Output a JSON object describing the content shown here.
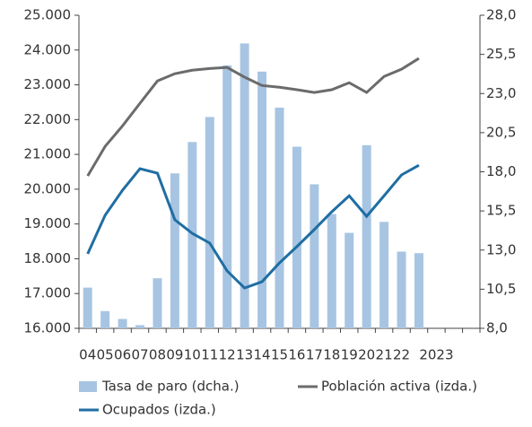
{
  "chart_data": {
    "type": "bar_line",
    "categories": [
      "04",
      "05",
      "06",
      "07",
      "08",
      "09",
      "10",
      "11",
      "12",
      "13",
      "14",
      "15",
      "16",
      "17",
      "18",
      "19",
      "20",
      "21",
      "22",
      null,
      "2023",
      null,
      null
    ],
    "series": [
      {
        "name": "Tasa de paro (dcha.)",
        "type": "bar",
        "axis": "y2",
        "color": "#a7c5e2",
        "values": [
          10.6,
          9.1,
          8.6,
          8.2,
          11.2,
          17.9,
          19.9,
          21.5,
          24.8,
          26.2,
          24.4,
          22.1,
          19.6,
          17.2,
          15.3,
          14.1,
          19.7,
          14.8,
          12.9,
          12.8,
          null,
          null,
          null
        ]
      },
      {
        "name": "Población activa (izda.)",
        "type": "line",
        "color": "#6b6b6b",
        "values": [
          20380,
          21230,
          21820,
          22470,
          23110,
          23320,
          23420,
          23470,
          23500,
          23220,
          22980,
          22930,
          22860,
          22780,
          22860,
          23060,
          22780,
          23240,
          23450,
          23760,
          null,
          null,
          null
        ]
      },
      {
        "name": "Ocupados (izda.)",
        "type": "line",
        "color": "#1f6ea3",
        "values": [
          18140,
          19250,
          19970,
          20590,
          20460,
          19120,
          18730,
          18450,
          17650,
          17160,
          17340,
          17880,
          18350,
          18840,
          19350,
          19810,
          19220,
          19810,
          20410,
          20690,
          null,
          null,
          null
        ]
      }
    ],
    "ylim": [
      16000,
      25000
    ],
    "yticks": [
      {
        "value": 16000,
        "label": "16.000"
      },
      {
        "value": 17000,
        "label": "17.000"
      },
      {
        "value": 18000,
        "label": "18.000"
      },
      {
        "value": 19000,
        "label": "19.000"
      },
      {
        "value": 20000,
        "label": "20.000"
      },
      {
        "value": 21000,
        "label": "21.000"
      },
      {
        "value": 22000,
        "label": "22.000"
      },
      {
        "value": 23000,
        "label": "23.000"
      },
      {
        "value": 24000,
        "label": "24.000"
      },
      {
        "value": 25000,
        "label": "25.000"
      }
    ],
    "y2lim": [
      8,
      28
    ],
    "y2ticks": [
      {
        "value": 8,
        "label": "8,0"
      },
      {
        "value": 10.5,
        "label": "10,5"
      },
      {
        "value": 13,
        "label": "13,0"
      },
      {
        "value": 15.5,
        "label": "15,5"
      },
      {
        "value": 18,
        "label": "18,0"
      },
      {
        "value": 20.5,
        "label": "20,5"
      },
      {
        "value": 23,
        "label": "23,0"
      },
      {
        "value": 25.5,
        "label": "25,5"
      },
      {
        "value": 28,
        "label": "28,0"
      }
    ]
  }
}
